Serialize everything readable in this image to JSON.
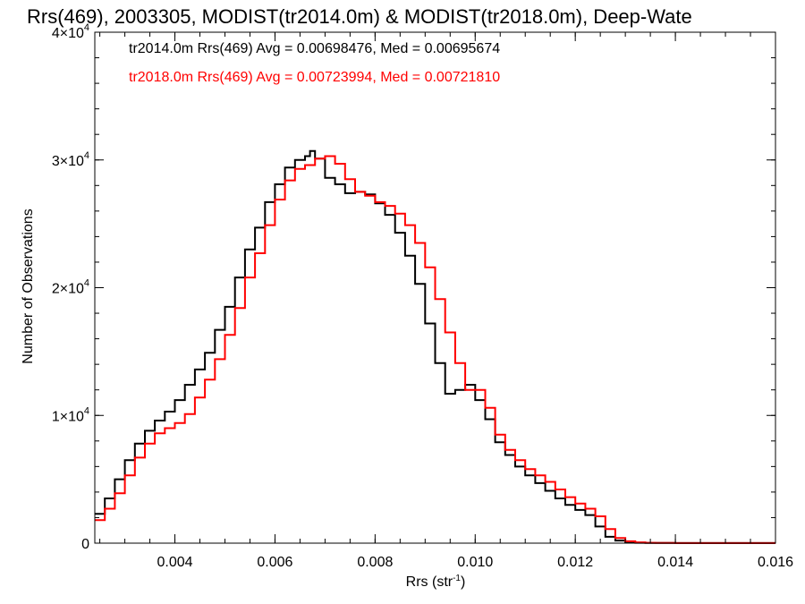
{
  "chart_data": {
    "type": "line",
    "title": "Rrs(469), 2003305, MODIST(tr2014.0m) & MODIST(tr2018.0m), Deep-Wate",
    "xlabel": "Rrs (str",
    "xlabel_exp": "-1",
    "xlabel_tail": ")",
    "ylabel": "Number of Observations",
    "xlim": [
      0.0024,
      0.016
    ],
    "ylim": [
      0,
      40000
    ],
    "x_ticks": [
      0.004,
      0.006,
      0.008,
      0.01,
      0.012,
      0.014,
      0.016
    ],
    "x_tick_labels": [
      "0.004",
      "0.006",
      "0.008",
      "0.010",
      "0.012",
      "0.014",
      "0.016"
    ],
    "y_ticks": [
      0,
      10000,
      20000,
      30000,
      40000
    ],
    "y_tick_labels": [
      {
        "base": "0",
        "exp": ""
      },
      {
        "base": "1×10",
        "exp": "4"
      },
      {
        "base": "2×10",
        "exp": "4"
      },
      {
        "base": "3×10",
        "exp": "4"
      },
      {
        "base": "4×10",
        "exp": "4"
      }
    ],
    "step": true,
    "grid": false,
    "annotations": [
      {
        "text": "tr2014.0m Rrs(469) Avg = 0.00698476, Med = 0.00695674",
        "color": "#000000"
      },
      {
        "text": "tr2018.0m Rrs(469) Avg = 0.00723994, Med = 0.00721810",
        "color": "#ff0000"
      }
    ],
    "series": [
      {
        "name": "tr2014.0m",
        "color": "#000000",
        "x": [
          0.0024,
          0.0026,
          0.0028,
          0.003,
          0.0032,
          0.0034,
          0.0036,
          0.0038,
          0.004,
          0.0042,
          0.0044,
          0.0046,
          0.0048,
          0.005,
          0.0052,
          0.0054,
          0.0056,
          0.0058,
          0.006,
          0.0062,
          0.0064,
          0.0066,
          0.0067,
          0.0068,
          0.007,
          0.0072,
          0.0074,
          0.0076,
          0.0078,
          0.008,
          0.0082,
          0.0084,
          0.0086,
          0.0088,
          0.009,
          0.0092,
          0.0094,
          0.0096,
          0.0098,
          0.01,
          0.0102,
          0.0104,
          0.0106,
          0.0108,
          0.011,
          0.0112,
          0.0114,
          0.0116,
          0.0118,
          0.012,
          0.0122,
          0.0124,
          0.0126,
          0.0128,
          0.013,
          0.0132,
          0.0134,
          0.014,
          0.015,
          0.016
        ],
        "y": [
          2300,
          3500,
          5000,
          6500,
          7800,
          8800,
          9600,
          10300,
          11200,
          12400,
          13600,
          14900,
          16700,
          18500,
          20800,
          23000,
          24700,
          26700,
          28100,
          29400,
          30000,
          30300,
          30700,
          30100,
          28600,
          28100,
          27400,
          27500,
          27300,
          26600,
          25700,
          24300,
          22500,
          20300,
          17200,
          14100,
          11700,
          12000,
          12400,
          11200,
          9700,
          7900,
          6900,
          6000,
          5300,
          4700,
          4100,
          3500,
          3000,
          2600,
          2200,
          1300,
          500,
          200,
          60,
          30,
          15,
          10,
          10,
          10
        ]
      },
      {
        "name": "tr2018.0m",
        "color": "#ff0000",
        "x": [
          0.0024,
          0.0026,
          0.0028,
          0.003,
          0.0032,
          0.0034,
          0.0036,
          0.0038,
          0.004,
          0.0042,
          0.0044,
          0.0046,
          0.0048,
          0.005,
          0.0052,
          0.0054,
          0.0056,
          0.0058,
          0.006,
          0.0062,
          0.0064,
          0.0066,
          0.0068,
          0.007,
          0.0072,
          0.0074,
          0.0076,
          0.0078,
          0.008,
          0.0082,
          0.0084,
          0.0086,
          0.0088,
          0.009,
          0.0092,
          0.0094,
          0.0096,
          0.0098,
          0.01,
          0.0102,
          0.0104,
          0.0106,
          0.0108,
          0.011,
          0.0112,
          0.0114,
          0.0116,
          0.0118,
          0.012,
          0.0122,
          0.0124,
          0.0126,
          0.0128,
          0.013,
          0.0132,
          0.0134,
          0.0136,
          0.014,
          0.015,
          0.016
        ],
        "y": [
          1800,
          2700,
          3900,
          5300,
          6700,
          7800,
          8600,
          9000,
          9400,
          10100,
          11400,
          12800,
          14400,
          16300,
          18400,
          20800,
          22700,
          24900,
          26900,
          28400,
          29300,
          29600,
          30100,
          30300,
          29700,
          28500,
          27500,
          27200,
          26700,
          26400,
          25800,
          24900,
          23500,
          21600,
          19100,
          16500,
          14100,
          12000,
          12000,
          10600,
          8500,
          7300,
          6500,
          5800,
          5300,
          4800,
          4200,
          3600,
          3100,
          2700,
          2100,
          1100,
          400,
          150,
          60,
          30,
          15,
          10,
          10,
          10
        ]
      }
    ]
  }
}
